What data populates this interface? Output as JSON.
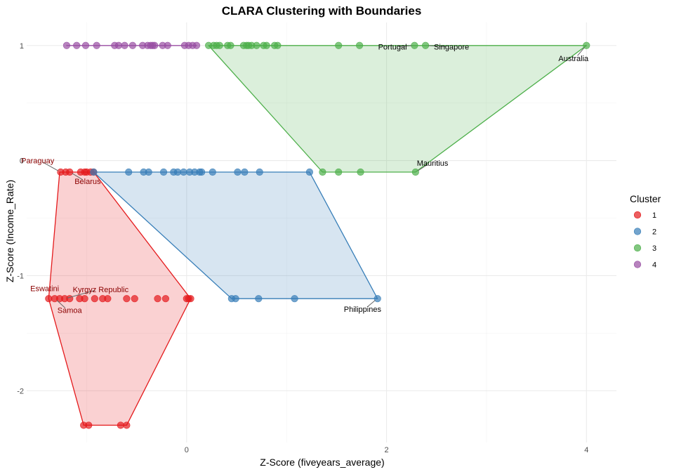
{
  "chart_data": {
    "type": "scatter",
    "title": "CLARA Clustering with Boundaries",
    "xlabel": "Z-Score (fiveyears_average)",
    "ylabel": "Z-Score (Income_Rate)",
    "xlim": [
      -1.6,
      4.3
    ],
    "ylim": [
      -2.45,
      1.2
    ],
    "x_ticks": [
      0,
      2,
      4
    ],
    "y_ticks": [
      -2,
      -1,
      0,
      1
    ],
    "grid": true,
    "legend": {
      "title": "Cluster",
      "position": "right",
      "entries": [
        "1",
        "2",
        "3",
        "4"
      ]
    },
    "series": [
      {
        "name": "1",
        "color": "#E41A1C",
        "points": [
          [
            -1.38,
            -1.2
          ],
          [
            -1.32,
            -1.2
          ],
          [
            -1.27,
            -1.2
          ],
          [
            -1.22,
            -1.2
          ],
          [
            -1.17,
            -1.2
          ],
          [
            -1.07,
            -1.2
          ],
          [
            -1.02,
            -1.2
          ],
          [
            -0.92,
            -1.2
          ],
          [
            -0.84,
            -1.2
          ],
          [
            -0.79,
            -1.2
          ],
          [
            -0.6,
            -1.2
          ],
          [
            -0.52,
            -1.2
          ],
          [
            -0.29,
            -1.2
          ],
          [
            -0.21,
            -1.2
          ],
          [
            0.0,
            -1.2
          ],
          [
            0.02,
            -1.2
          ],
          [
            0.04,
            -1.2
          ],
          [
            -1.26,
            -0.1
          ],
          [
            -1.21,
            -0.1
          ],
          [
            -1.17,
            -0.1
          ],
          [
            -1.06,
            -0.1
          ],
          [
            -1.02,
            -0.1
          ],
          [
            -1.0,
            -0.1
          ],
          [
            -0.96,
            -0.1
          ],
          [
            -0.93,
            -0.1
          ],
          [
            -1.03,
            -2.3
          ],
          [
            -0.98,
            -2.3
          ],
          [
            -0.66,
            -2.3
          ],
          [
            -0.6,
            -2.3
          ]
        ],
        "hull": [
          [
            -1.27,
            -0.1
          ],
          [
            -0.93,
            -0.1
          ],
          [
            0.04,
            -1.2
          ],
          [
            -0.6,
            -2.3
          ],
          [
            -1.03,
            -2.3
          ],
          [
            -1.38,
            -1.2
          ]
        ]
      },
      {
        "name": "2",
        "color": "#377EB8",
        "points": [
          [
            -0.93,
            -0.1
          ],
          [
            -0.58,
            -0.1
          ],
          [
            -0.43,
            -0.1
          ],
          [
            -0.38,
            -0.1
          ],
          [
            -0.23,
            -0.1
          ],
          [
            -0.13,
            -0.1
          ],
          [
            -0.09,
            -0.1
          ],
          [
            -0.03,
            -0.1
          ],
          [
            0.03,
            -0.1
          ],
          [
            0.08,
            -0.1
          ],
          [
            0.13,
            -0.1
          ],
          [
            0.15,
            -0.1
          ],
          [
            0.26,
            -0.1
          ],
          [
            0.51,
            -0.1
          ],
          [
            0.58,
            -0.1
          ],
          [
            0.73,
            -0.1
          ],
          [
            1.23,
            -0.1
          ],
          [
            0.45,
            -1.2
          ],
          [
            0.49,
            -1.2
          ],
          [
            0.72,
            -1.2
          ],
          [
            1.08,
            -1.2
          ],
          [
            1.91,
            -1.2
          ]
        ],
        "hull": [
          [
            -0.93,
            -0.1
          ],
          [
            1.23,
            -0.1
          ],
          [
            1.91,
            -1.2
          ],
          [
            0.45,
            -1.2
          ]
        ]
      },
      {
        "name": "3",
        "color": "#4DAF4A",
        "points": [
          [
            0.22,
            1.0
          ],
          [
            0.27,
            1.0
          ],
          [
            0.3,
            1.0
          ],
          [
            0.33,
            1.0
          ],
          [
            0.41,
            1.0
          ],
          [
            0.44,
            1.0
          ],
          [
            0.57,
            1.0
          ],
          [
            0.6,
            1.0
          ],
          [
            0.62,
            1.0
          ],
          [
            0.65,
            1.0
          ],
          [
            0.7,
            1.0
          ],
          [
            0.77,
            1.0
          ],
          [
            0.8,
            1.0
          ],
          [
            0.88,
            1.0
          ],
          [
            0.91,
            1.0
          ],
          [
            1.52,
            1.0
          ],
          [
            1.73,
            1.0
          ],
          [
            2.28,
            1.0
          ],
          [
            2.39,
            1.0
          ],
          [
            4.0,
            1.0
          ],
          [
            1.36,
            -0.1
          ],
          [
            1.52,
            -0.1
          ],
          [
            1.74,
            -0.1
          ],
          [
            2.29,
            -0.1
          ]
        ],
        "hull": [
          [
            0.22,
            1.0
          ],
          [
            4.0,
            1.0
          ],
          [
            2.29,
            -0.1
          ],
          [
            1.36,
            -0.1
          ]
        ]
      },
      {
        "name": "4",
        "color": "#984EA3",
        "points": [
          [
            -1.2,
            1.0
          ],
          [
            -1.1,
            1.0
          ],
          [
            -1.01,
            1.0
          ],
          [
            -0.9,
            1.0
          ],
          [
            -0.72,
            1.0
          ],
          [
            -0.68,
            1.0
          ],
          [
            -0.62,
            1.0
          ],
          [
            -0.54,
            1.0
          ],
          [
            -0.44,
            1.0
          ],
          [
            -0.39,
            1.0
          ],
          [
            -0.36,
            1.0
          ],
          [
            -0.34,
            1.0
          ],
          [
            -0.32,
            1.0
          ],
          [
            -0.24,
            1.0
          ],
          [
            -0.19,
            1.0
          ],
          [
            -0.02,
            1.0
          ],
          [
            0.02,
            1.0
          ],
          [
            0.06,
            1.0
          ],
          [
            0.1,
            1.0
          ]
        ],
        "hull": [
          [
            -1.2,
            1.0
          ],
          [
            0.1,
            1.0
          ]
        ]
      }
    ],
    "annotations": [
      {
        "text": "Paraguay",
        "cluster": "1",
        "x": -1.26,
        "y": -0.1,
        "lx": -1.49,
        "ly": 0.0
      },
      {
        "text": "Belarus",
        "cluster": "1",
        "x": -1.17,
        "y": -0.1,
        "lx": -0.99,
        "ly": -0.18
      },
      {
        "text": "Eswatini",
        "cluster": "1",
        "x": -1.38,
        "y": -1.2,
        "lx": -1.42,
        "ly": -1.11
      },
      {
        "text": "Kyrgyz Republic",
        "cluster": "1",
        "x": -1.22,
        "y": -1.2,
        "lx": -0.86,
        "ly": -1.12
      },
      {
        "text": "Samoa",
        "cluster": "1",
        "x": -1.32,
        "y": -1.2,
        "lx": -1.17,
        "ly": -1.3
      },
      {
        "text": "Philippines",
        "cluster": "2",
        "x": 1.91,
        "y": -1.2,
        "lx": 1.76,
        "ly": -1.29
      },
      {
        "text": "Portugal",
        "cluster": "3",
        "x": 2.28,
        "y": 1.0,
        "lx": 2.06,
        "ly": 0.99
      },
      {
        "text": "Singapore",
        "cluster": "3",
        "x": 2.39,
        "y": 1.0,
        "lx": 2.65,
        "ly": 0.99
      },
      {
        "text": "Australia",
        "cluster": "3",
        "x": 4.0,
        "y": 1.0,
        "lx": 3.87,
        "ly": 0.89
      },
      {
        "text": "Mauritius",
        "cluster": "3",
        "x": 2.29,
        "y": -0.1,
        "lx": 2.46,
        "ly": -0.02
      }
    ]
  }
}
